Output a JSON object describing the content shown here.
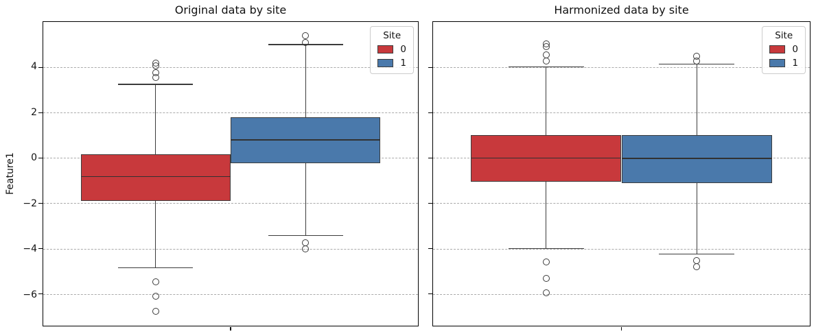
{
  "colors": {
    "site0": "#c8393c",
    "site1": "#4a79ab",
    "edge": "#3b3b3b",
    "grid": "#a9a9a9",
    "spine": "#000000",
    "legend_border": "#cccccc"
  },
  "chart_data": [
    {
      "type": "boxplot",
      "title": "Original data by site",
      "ylabel": "Feature1",
      "ylim": [
        -7.4,
        6.0
      ],
      "yticks": [
        4,
        2,
        0,
        -2,
        -4,
        -6
      ],
      "ytick_labels": [
        "4",
        "2",
        "0",
        "−2",
        "−4",
        "−6"
      ],
      "grid": true,
      "legend": {
        "title": "Site",
        "position": "upper right",
        "entries": [
          {
            "label": "0",
            "color_key": "site0"
          },
          {
            "label": "1",
            "color_key": "site1"
          }
        ]
      },
      "boxes": [
        {
          "site": "0",
          "color_key": "site0",
          "center_frac": 0.3,
          "width_frac": 0.4,
          "cap_frac": 0.2,
          "q1": -1.9,
          "median": -0.82,
          "q3": 0.17,
          "whisker_low": -4.85,
          "whisker_high": 3.25,
          "outliers": [
            3.55,
            3.75,
            4.05,
            4.18,
            -5.45,
            -6.1,
            -6.75
          ]
        },
        {
          "site": "1",
          "color_key": "site1",
          "center_frac": 0.7,
          "width_frac": 0.4,
          "cap_frac": 0.2,
          "q1": -0.23,
          "median": 0.8,
          "q3": 1.8,
          "whisker_low": -3.42,
          "whisker_high": 5.0,
          "outliers": [
            5.1,
            5.4,
            -3.73,
            -4.0
          ]
        }
      ]
    },
    {
      "type": "boxplot",
      "title": "Harmonized data by site",
      "ylabel": "",
      "ylim": [
        -7.4,
        6.0
      ],
      "yticks": [
        4,
        2,
        0,
        -2,
        -4,
        -6
      ],
      "ytick_labels": [
        "4",
        "2",
        "0",
        "−2",
        "−4",
        "−6"
      ],
      "grid": true,
      "legend": {
        "title": "Site",
        "position": "upper right",
        "entries": [
          {
            "label": "0",
            "color_key": "site0"
          },
          {
            "label": "1",
            "color_key": "site1"
          }
        ]
      },
      "boxes": [
        {
          "site": "0",
          "color_key": "site0",
          "center_frac": 0.3,
          "width_frac": 0.4,
          "cap_frac": 0.2,
          "q1": -1.05,
          "median": 0.0,
          "q3": 1.0,
          "whisker_low": -4.0,
          "whisker_high": 4.02,
          "outliers": [
            4.28,
            4.55,
            4.9,
            5.02,
            -4.6,
            -5.3,
            -5.95
          ]
        },
        {
          "site": "1",
          "color_key": "site1",
          "center_frac": 0.7,
          "width_frac": 0.4,
          "cap_frac": 0.2,
          "q1": -1.1,
          "median": -0.02,
          "q3": 1.02,
          "whisker_low": -4.23,
          "whisker_high": 4.15,
          "outliers": [
            4.28,
            4.5,
            -4.53,
            -4.8
          ]
        }
      ]
    }
  ]
}
